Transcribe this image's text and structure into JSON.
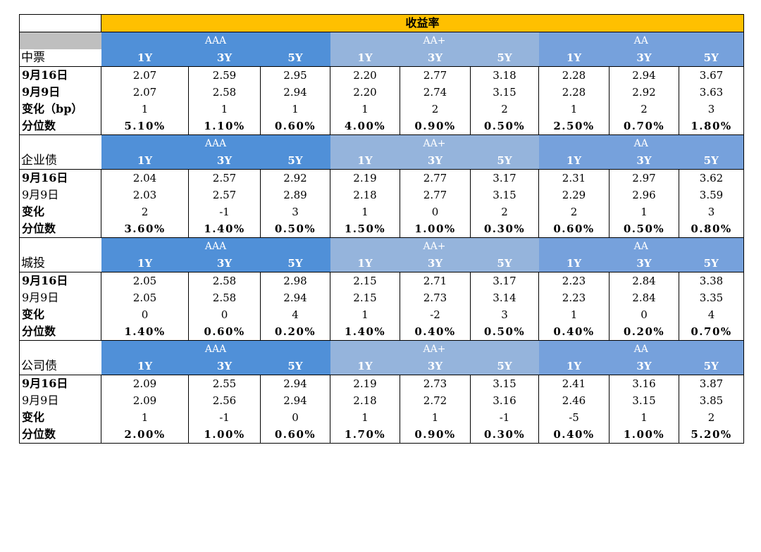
{
  "title": "收益率",
  "groups": [
    {
      "label": "中票",
      "ratings": [
        "AAA",
        "AA+",
        "AA"
      ],
      "tenors": [
        "1Y",
        "3Y",
        "5Y",
        "1Y",
        "3Y",
        "5Y",
        "1Y",
        "3Y",
        "5Y"
      ],
      "rows": [
        {
          "label": "9月16日",
          "bold": true,
          "pct": false,
          "values": [
            "2.07",
            "2.59",
            "2.95",
            "2.20",
            "2.77",
            "3.18",
            "2.28",
            "2.94",
            "3.67"
          ]
        },
        {
          "label": "9月9日",
          "bold": true,
          "pct": false,
          "values": [
            "2.07",
            "2.58",
            "2.94",
            "2.20",
            "2.74",
            "3.15",
            "2.28",
            "2.92",
            "3.63"
          ]
        },
        {
          "label": "变化（bp）",
          "bold": true,
          "pct": false,
          "values": [
            "1",
            "1",
            "1",
            "1",
            "2",
            "2",
            "1",
            "2",
            "3"
          ]
        },
        {
          "label": "分位数",
          "bold": true,
          "pct": true,
          "values": [
            "5.10%",
            "1.10%",
            "0.60%",
            "4.00%",
            "0.90%",
            "0.50%",
            "2.50%",
            "0.70%",
            "1.80%"
          ]
        }
      ]
    },
    {
      "label": "企业债",
      "ratings": [
        "AAA",
        "AA+",
        "AA"
      ],
      "tenors": [
        "1Y",
        "3Y",
        "5Y",
        "1Y",
        "3Y",
        "5Y",
        "1Y",
        "3Y",
        "5Y"
      ],
      "rows": [
        {
          "label": "9月16日",
          "bold": true,
          "pct": false,
          "values": [
            "2.04",
            "2.57",
            "2.92",
            "2.19",
            "2.77",
            "3.17",
            "2.31",
            "2.97",
            "3.62"
          ]
        },
        {
          "label": "9月9日",
          "bold": false,
          "pct": false,
          "values": [
            "2.03",
            "2.57",
            "2.89",
            "2.18",
            "2.77",
            "3.15",
            "2.29",
            "2.96",
            "3.59"
          ]
        },
        {
          "label": "变化",
          "bold": true,
          "pct": false,
          "values": [
            "2",
            "-1",
            "3",
            "1",
            "0",
            "2",
            "2",
            "1",
            "3"
          ]
        },
        {
          "label": "分位数",
          "bold": true,
          "pct": true,
          "values": [
            "3.60%",
            "1.40%",
            "0.50%",
            "1.50%",
            "1.00%",
            "0.30%",
            "0.60%",
            "0.50%",
            "0.80%"
          ]
        }
      ]
    },
    {
      "label": "城投",
      "ratings": [
        "AAA",
        "AA+",
        "AA"
      ],
      "tenors": [
        "1Y",
        "3Y",
        "5Y",
        "1Y",
        "3Y",
        "5Y",
        "1Y",
        "3Y",
        "5Y"
      ],
      "rows": [
        {
          "label": "9月16日",
          "bold": true,
          "pct": false,
          "values": [
            "2.05",
            "2.58",
            "2.98",
            "2.15",
            "2.71",
            "3.17",
            "2.23",
            "2.84",
            "3.38"
          ]
        },
        {
          "label": "9月9日",
          "bold": false,
          "pct": false,
          "values": [
            "2.05",
            "2.58",
            "2.94",
            "2.15",
            "2.73",
            "3.14",
            "2.23",
            "2.84",
            "3.35"
          ]
        },
        {
          "label": "变化",
          "bold": true,
          "pct": false,
          "values": [
            "0",
            "0",
            "4",
            "1",
            "-2",
            "3",
            "1",
            "0",
            "4"
          ]
        },
        {
          "label": "分位数",
          "bold": true,
          "pct": true,
          "values": [
            "1.40%",
            "0.60%",
            "0.20%",
            "1.40%",
            "0.40%",
            "0.50%",
            "0.40%",
            "0.20%",
            "0.70%"
          ]
        }
      ]
    },
    {
      "label": "公司债",
      "ratings": [
        "AAA",
        "AA+",
        "AA"
      ],
      "tenors": [
        "1Y",
        "3Y",
        "5Y",
        "1Y",
        "3Y",
        "5Y",
        "1Y",
        "3Y",
        "5Y"
      ],
      "rows": [
        {
          "label": "9月16日",
          "bold": true,
          "pct": false,
          "values": [
            "2.09",
            "2.55",
            "2.94",
            "2.19",
            "2.73",
            "3.15",
            "2.41",
            "3.16",
            "3.87"
          ]
        },
        {
          "label": "9月9日",
          "bold": false,
          "pct": false,
          "values": [
            "2.09",
            "2.56",
            "2.94",
            "2.18",
            "2.72",
            "3.16",
            "2.46",
            "3.15",
            "3.85"
          ]
        },
        {
          "label": "变化",
          "bold": true,
          "pct": false,
          "values": [
            "1",
            "-1",
            "0",
            "1",
            "1",
            "-1",
            "-5",
            "1",
            "2"
          ]
        },
        {
          "label": "分位数",
          "bold": true,
          "pct": true,
          "values": [
            "2.00%",
            "1.00%",
            "0.60%",
            "1.70%",
            "0.90%",
            "0.30%",
            "0.40%",
            "1.00%",
            "5.20%"
          ]
        }
      ]
    }
  ],
  "colors": {
    "title_bg": "#ffc000",
    "aaa_bg": "#5090d8",
    "aa_plus_bg": "#95b4dc",
    "aa_bg": "#76a1dc",
    "header_gray": "#bfbfbf"
  }
}
